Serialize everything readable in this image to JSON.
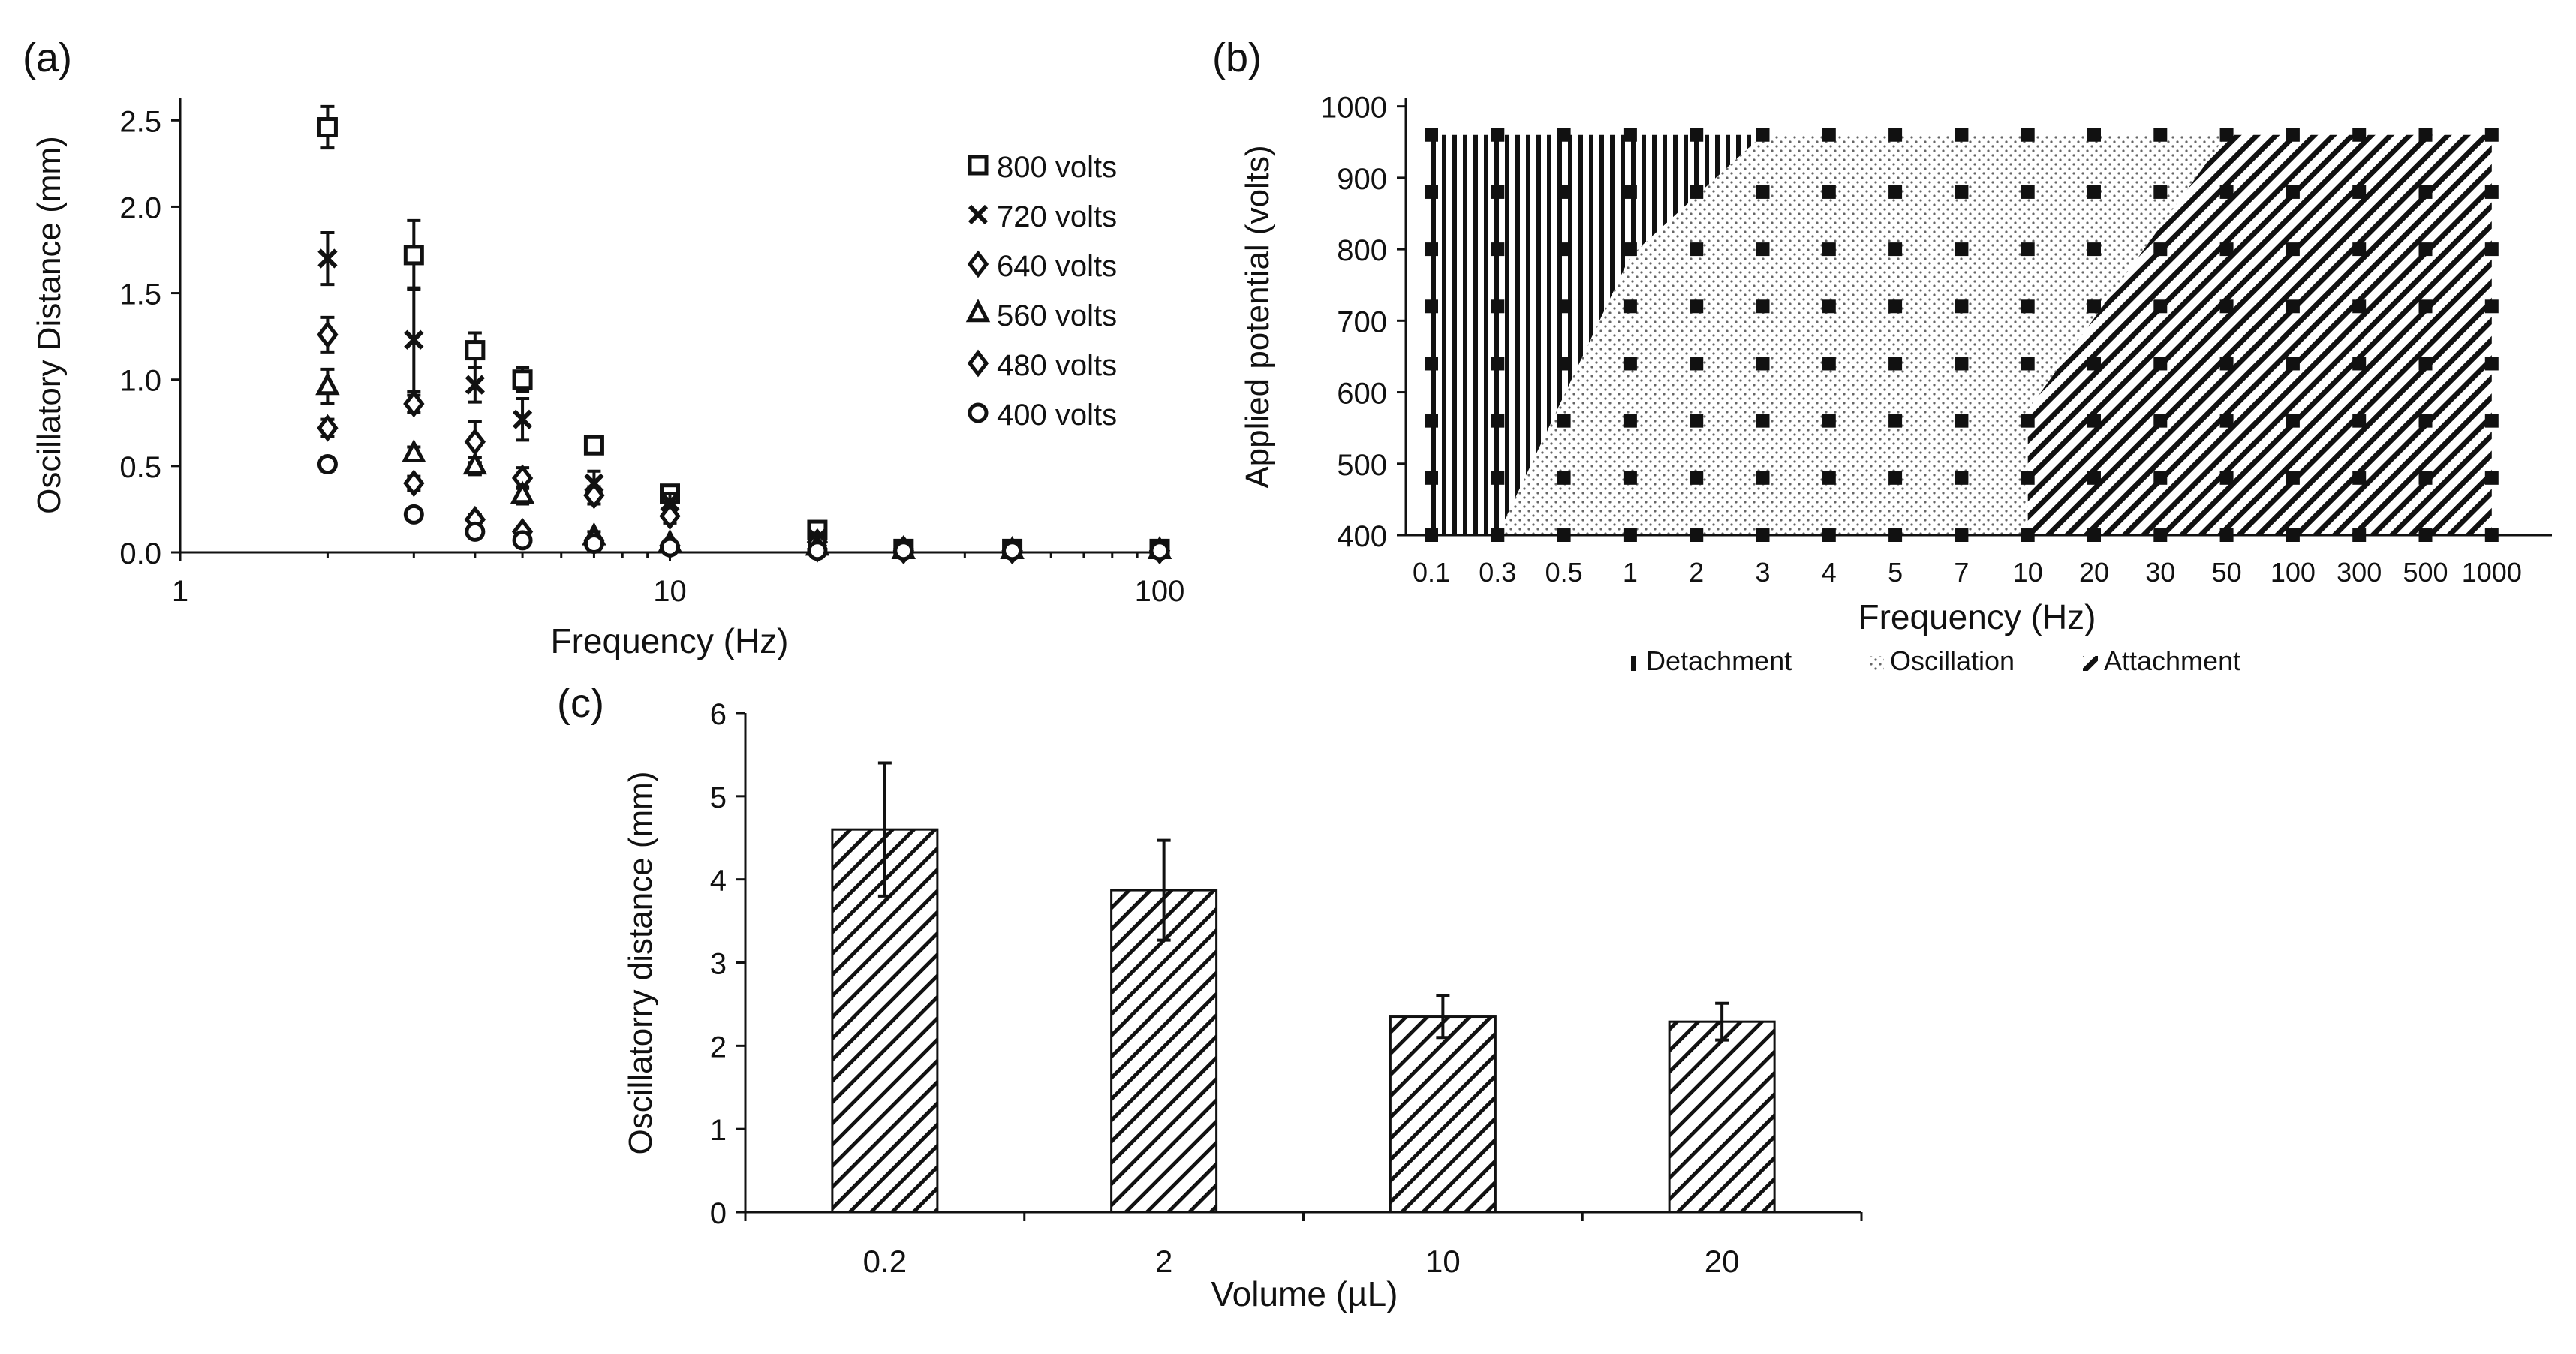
{
  "panels": {
    "a_label": "(a)",
    "b_label": "(b)",
    "c_label": "(c)"
  },
  "chart_data": [
    {
      "id": "a",
      "type": "scatter",
      "xscale": "log",
      "xlim": [
        1,
        100
      ],
      "ylim": [
        0,
        2.5
      ],
      "xticks": [
        "1",
        "10",
        "100"
      ],
      "yticks": [
        "0.0",
        "0.5",
        "1.0",
        "1.5",
        "2.0",
        "2.5"
      ],
      "xlabel": "Frequency (Hz)",
      "ylabel": "Oscillatory Distance (mm)",
      "legend_position": "top-right",
      "series": [
        {
          "name": "800 volts",
          "marker": "square",
          "x": [
            2,
            3,
            4,
            5,
            7,
            10,
            20,
            30,
            50,
            100
          ],
          "y": [
            2.46,
            1.72,
            1.17,
            1.0,
            0.62,
            0.34,
            0.13,
            0.02,
            0.02,
            0.02
          ],
          "err": [
            0.12,
            0.2,
            0.1,
            0.07,
            0.03,
            0.03,
            0.02,
            0.01,
            0.01,
            0.01
          ]
        },
        {
          "name": "720 volts",
          "marker": "cross",
          "x": [
            2,
            3,
            4,
            5,
            7,
            10,
            20,
            30,
            50,
            100
          ],
          "y": [
            1.7,
            1.23,
            0.97,
            0.77,
            0.4,
            0.29,
            0.08,
            0.02,
            0.02,
            0.02
          ],
          "err": [
            0.15,
            0.3,
            0.1,
            0.12,
            0.07,
            0.05,
            0.02,
            0.01,
            0.01,
            0.01
          ]
        },
        {
          "name": "640 volts",
          "marker": "diamond",
          "x": [
            2,
            3,
            4,
            5,
            7,
            10,
            20,
            30,
            50,
            100
          ],
          "y": [
            1.26,
            0.86,
            0.64,
            0.43,
            0.33,
            0.21,
            0.06,
            0.02,
            0.01,
            0.01
          ],
          "err": [
            0.1,
            0.05,
            0.12,
            0.06,
            0.05,
            0.04,
            0.02,
            0.01,
            0.01,
            0.01
          ]
        },
        {
          "name": "560 volts",
          "marker": "triangle",
          "x": [
            2,
            3,
            4,
            5,
            7,
            10,
            20,
            30,
            50,
            100
          ],
          "y": [
            0.96,
            0.57,
            0.5,
            0.33,
            0.09,
            0.05,
            0.03,
            0.01,
            0.01,
            0.01
          ],
          "err": [
            0.1,
            0.04,
            0.05,
            0.05,
            0.03,
            0.02,
            0.01,
            0.01,
            0.01,
            0.01
          ]
        },
        {
          "name": "480 volts",
          "marker": "diamond",
          "x": [
            2,
            3,
            4,
            5,
            7,
            10,
            20,
            30,
            50,
            100
          ],
          "y": [
            0.72,
            0.4,
            0.19,
            0.12,
            0.07,
            0.04,
            0.02,
            0.01,
            0.01,
            0.01
          ],
          "err": [
            0.05,
            0.04,
            0.03,
            0.02,
            0.02,
            0.01,
            0.01,
            0.01,
            0.01,
            0.01
          ]
        },
        {
          "name": "400 volts",
          "marker": "circle",
          "x": [
            2,
            3,
            4,
            5,
            7,
            10,
            20,
            30,
            50,
            100
          ],
          "y": [
            0.51,
            0.22,
            0.12,
            0.07,
            0.05,
            0.03,
            0.01,
            0.01,
            0.01,
            0.01
          ],
          "err": [
            0.04,
            0.02,
            0.02,
            0.02,
            0.01,
            0.01,
            0.01,
            0.01,
            0.01,
            0.01
          ]
        }
      ]
    },
    {
      "id": "b",
      "type": "phase-map",
      "categories": [
        "0.1",
        "0.3",
        "0.5",
        "1",
        "2",
        "3",
        "4",
        "5",
        "7",
        "10",
        "20",
        "30",
        "50",
        "100",
        "300",
        "500",
        "1000"
      ],
      "voltages": [
        400,
        480,
        560,
        640,
        720,
        800,
        880,
        960
      ],
      "yticks": [
        "400",
        "500",
        "600",
        "700",
        "800",
        "900",
        "1000"
      ],
      "ylim": [
        400,
        1000
      ],
      "xlabel": "Frequency (Hz)",
      "ylabel": "Applied potential (volts)",
      "regions": [
        {
          "name": "Detachment",
          "pattern": "vertical-lines"
        },
        {
          "name": "Oscillation",
          "pattern": "dots"
        },
        {
          "name": "Attachment",
          "pattern": "diagonal-lines"
        }
      ],
      "boundaries": {
        "detachment_oscillation": [
          {
            "freq": "0.3",
            "volts": 400
          },
          {
            "freq": "1",
            "volts": 790
          },
          {
            "freq": "3",
            "volts": 960
          }
        ],
        "oscillation_attachment": [
          {
            "freq": "10",
            "volts": 400
          },
          {
            "freq": "10",
            "volts": 575
          },
          {
            "freq": "50",
            "volts": 960
          }
        ]
      },
      "legend_position": "bottom"
    },
    {
      "id": "c",
      "type": "bar",
      "categories": [
        "0.2",
        "2",
        "10",
        "20"
      ],
      "values": [
        4.6,
        3.87,
        2.35,
        2.29
      ],
      "errors": [
        0.8,
        0.6,
        0.25,
        0.22
      ],
      "ylim": [
        0,
        6
      ],
      "yticks": [
        "0",
        "1",
        "2",
        "3",
        "4",
        "5",
        "6"
      ],
      "xlabel": "Volume (µL)",
      "ylabel": "Oscillatorry distance (mm)",
      "pattern": "diagonal-lines"
    }
  ]
}
